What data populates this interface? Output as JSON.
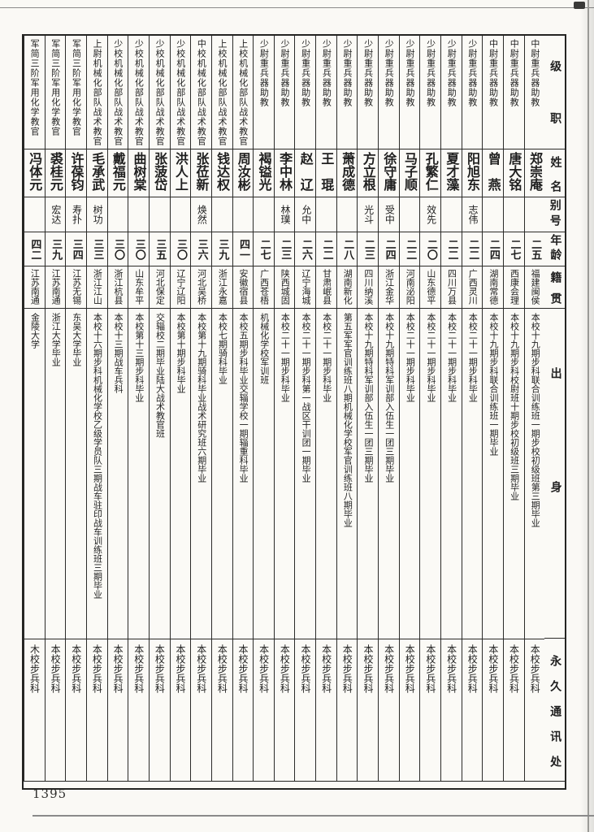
{
  "page": {
    "number": "1395"
  },
  "table": {
    "headers": {
      "rank": "级职",
      "name": "姓名",
      "alias": "别号",
      "age": "年龄",
      "native": "籍贯",
      "origin": "出身",
      "address": "永久通讯处"
    },
    "people": [
      {
        "rank": "中尉重兵器助教",
        "name": "郑崇庵",
        "alias": "",
        "age": "二五",
        "native": "福建闽侯",
        "origin": "本校十九期步科联合训练班一期步校初级班第三期毕业",
        "address": "本校步兵科"
      },
      {
        "rank": "中尉重兵器助教",
        "name": "唐大铭",
        "alias": "",
        "age": "二七",
        "native": "西康会理",
        "origin": "本校十九期步科校尉班十期步校初级班三期毕业",
        "address": "本校步兵科"
      },
      {
        "rank": "中尉重兵器助教",
        "name": "曾　燕",
        "alias": "",
        "age": "二四",
        "native": "湖南常德",
        "origin": "本校十九期步科联合训练班一期毕业",
        "address": "本校步兵科"
      },
      {
        "rank": "少尉重兵器助教",
        "name": "阳旭东",
        "alias": "志伟",
        "age": "二二",
        "native": "广西灵川",
        "origin": "本校二十一期步科毕业",
        "address": "本校步兵科"
      },
      {
        "rank": "少尉重兵器助教",
        "name": "夏才藻",
        "alias": "",
        "age": "二二",
        "native": "四川万县",
        "origin": "本校二十一期步科毕业",
        "address": "本校步兵科"
      },
      {
        "rank": "少尉重兵器助教",
        "name": "孔繁仁",
        "alias": "效先",
        "age": "二〇",
        "native": "山东德平",
        "origin": "本校二十一期步科毕业",
        "address": "本校步兵科"
      },
      {
        "rank": "少尉重兵器助教",
        "name": "马子顺",
        "alias": "",
        "age": "二二",
        "native": "河南泌阳",
        "origin": "本校二十一期步科毕业",
        "address": "本校步兵科"
      },
      {
        "rank": "少尉重兵器助教",
        "name": "徐守庸",
        "alias": "受中",
        "age": "二四",
        "native": "浙江金华",
        "origin": "本校十九期特科军训部入伍生一团三期毕业",
        "address": "本校步兵科"
      },
      {
        "rank": "少尉重兵器助教",
        "name": "方立根",
        "alias": "光斗",
        "age": "二三",
        "native": "四川纳溪",
        "origin": "本校十九期特科军训部入伍生一团三期毕业",
        "address": "本校步兵科"
      },
      {
        "rank": "少尉重兵器助教",
        "name": "萧成德",
        "alias": "",
        "age": "二八",
        "native": "湖南新化",
        "origin": "第五军军官训练班八期机械化学校军官训练班八期毕业",
        "address": "本校步兵科"
      },
      {
        "rank": "少尉重兵器助教",
        "name": "王　琨",
        "alias": "",
        "age": "二二",
        "native": "甘肃岷县",
        "origin": "本校二十一期步科毕业",
        "address": "本校步兵科"
      },
      {
        "rank": "少尉重兵器助教",
        "name": "赵　辽",
        "alias": "允中",
        "age": "二六",
        "native": "辽宁海城",
        "origin": "本校二十一期步科第一战区干训团一期毕业",
        "address": "本校步兵科"
      },
      {
        "rank": "少尉重兵器助教",
        "name": "李中林",
        "alias": "林璞",
        "age": "二三",
        "native": "陕西城固",
        "origin": "本校二十一期步科毕业",
        "address": "本校步兵科"
      },
      {
        "rank": "少尉重兵器助教",
        "name": "褐镒光",
        "alias": "",
        "age": "二七",
        "native": "广西苍梧",
        "origin": "机械化学校军训班",
        "address": "本校步兵科"
      },
      {
        "rank": "上校机械化部队战术教官",
        "name": "周汝彬",
        "alias": "",
        "age": "四一",
        "native": "安徽宿县",
        "origin": "本校五期步科毕业交辎学校一期辎重科毕业",
        "address": "本校步兵科"
      },
      {
        "rank": "上校机械化部队战术教官",
        "name": "钱达权",
        "alias": "",
        "age": "三九",
        "native": "浙江永嘉",
        "origin": "本校七期骑科毕业",
        "address": "本校步兵科"
      },
      {
        "rank": "中校机械化部队战术教官",
        "name": "张莅新",
        "alias": "焕然",
        "age": "三六",
        "native": "河北吴桥",
        "origin": "本校第十九期骑科毕业战术研究班六期毕业",
        "address": "本校步兵科"
      },
      {
        "rank": "少校机械化部队战术教官",
        "name": "洪人上",
        "alias": "",
        "age": "三〇",
        "native": "辽宁辽阳",
        "origin": "本校第十期步科毕业",
        "address": "本校步兵科"
      },
      {
        "rank": "少校机械化部队战术教官",
        "name": "张菠岱",
        "alias": "",
        "age": "三五",
        "native": "河北保定",
        "origin": "交辎校二期毕业陆大战术教官班",
        "address": "本校步兵科"
      },
      {
        "rank": "少校机械化部队战术教官",
        "name": "曲树棠",
        "alias": "",
        "age": "三〇",
        "native": "山东牟平",
        "origin": "本校第十三期步科毕业",
        "address": "本校步兵科"
      },
      {
        "rank": "少校机械化部队战术教官",
        "name": "戴福元",
        "alias": "",
        "age": "三〇",
        "native": "浙江杭县",
        "origin": "本校十三期战车兵科",
        "address": "本校步兵科"
      },
      {
        "rank": "上尉机械化部队战术教官",
        "name": "毛承武",
        "alias": "树功",
        "age": "三三",
        "native": "浙江江山",
        "origin": "本校十六期步科机械化学校乙级学员队三期战车驻印战车训练班三期毕业",
        "address": "本校步兵科"
      },
      {
        "rank": "军简三阶军用化学教官",
        "name": "许葆钧",
        "alias": "寿扑",
        "age": "三四",
        "native": "江苏无锡",
        "origin": "东吴大学毕业",
        "address": "本校步兵科"
      },
      {
        "rank": "军简三阶军用化学教官",
        "name": "裘桂元",
        "alias": "宏达",
        "age": "三九",
        "native": "江苏南通",
        "origin": "浙江大学毕业",
        "address": "本校步兵科"
      },
      {
        "rank": "军简三阶军用化学教官",
        "name": "冯体元",
        "alias": "",
        "age": "四二",
        "native": "江苏南通",
        "origin": "金陵大学",
        "address": "木校步兵科"
      }
    ]
  }
}
